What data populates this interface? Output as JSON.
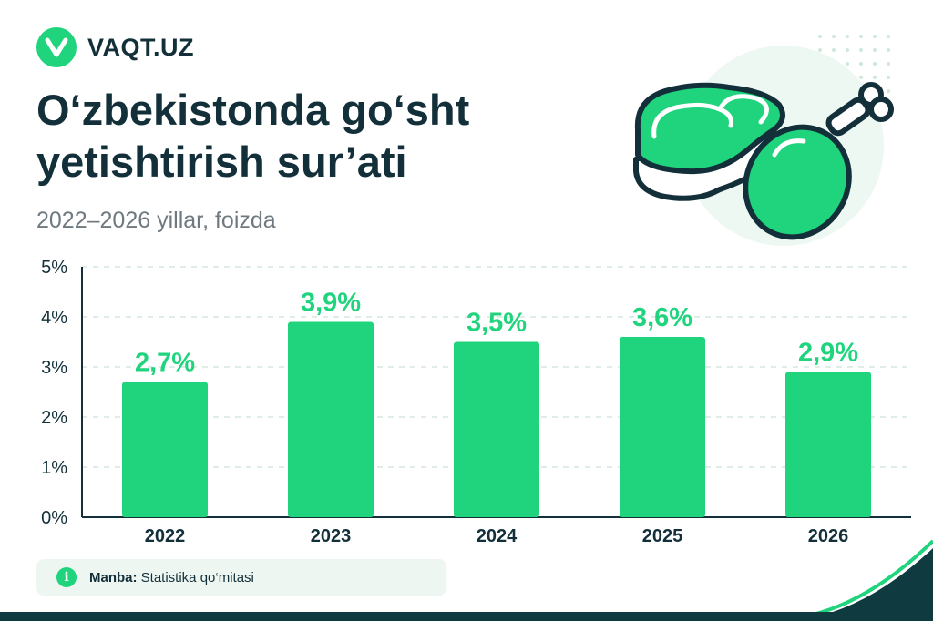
{
  "brand": {
    "name": "VAQT.UZ",
    "color": "#1fd47d"
  },
  "header": {
    "title_lines": [
      "O‘zbekistonda go‘sht",
      "yetishtirish sur’ati"
    ],
    "subtitle": "2022–2026 yillar, foizda"
  },
  "illustration": {
    "icons": [
      "meat-steak-icon",
      "chicken-drumstick-icon"
    ]
  },
  "source": {
    "label": "Manba:",
    "text": "Statistika qo‘mitasi",
    "icon": "info-icon"
  },
  "colors": {
    "bar": "#1fd47d",
    "text_dark": "#13303a",
    "value_label": "#1fd47d"
  },
  "chart_data": {
    "type": "bar",
    "categories": [
      "2022",
      "2023",
      "2024",
      "2025",
      "2026"
    ],
    "values": [
      2.7,
      3.9,
      3.5,
      3.6,
      2.9
    ],
    "value_labels": [
      "2,7%",
      "3,9%",
      "3,5%",
      "3,6%",
      "2,9%"
    ],
    "yticks": [
      0,
      1,
      2,
      3,
      4,
      5
    ],
    "ytick_labels": [
      "0%",
      "1%",
      "2%",
      "3%",
      "4%",
      "5%"
    ],
    "ylim": [
      0,
      5
    ],
    "grid": true,
    "grid_style": "dashed"
  }
}
